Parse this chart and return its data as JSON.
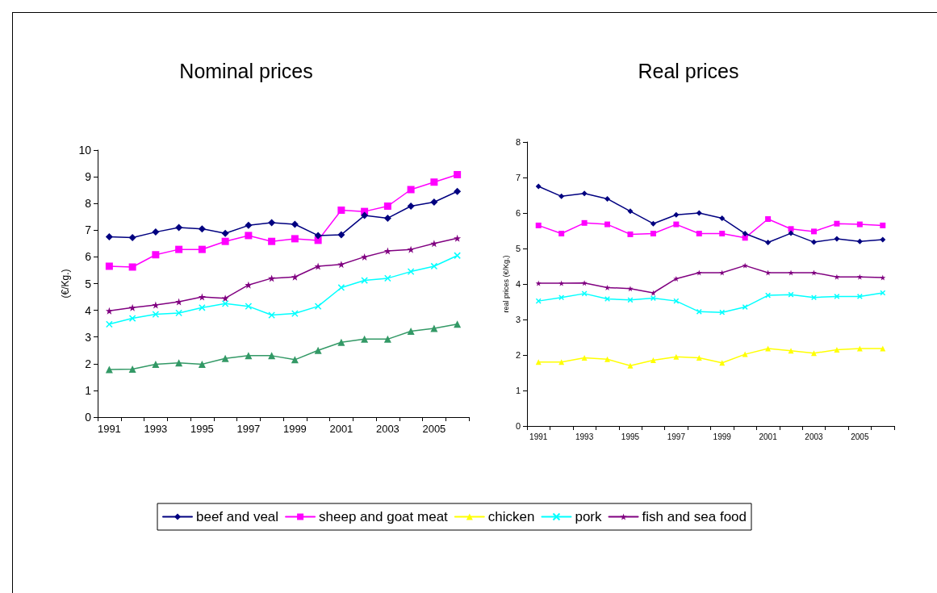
{
  "chart_data": [
    {
      "type": "line",
      "title": "Nominal prices",
      "ylabel": "(€/Kg.)",
      "categories": [
        "1991",
        null,
        "1993",
        null,
        "1995",
        null,
        "1997",
        null,
        "1999",
        null,
        "2001",
        null,
        "2003",
        null,
        "2005",
        null
      ],
      "ylim": [
        0,
        10
      ],
      "yticks": [
        0,
        1,
        2,
        3,
        4,
        5,
        6,
        7,
        8,
        9,
        10
      ],
      "grid": false,
      "series": [
        {
          "color": "#000080",
          "marker": "diamond",
          "values": [
            6.75,
            6.72,
            6.93,
            7.1,
            7.05,
            6.88,
            7.18,
            7.28,
            7.22,
            6.8,
            6.83,
            7.55,
            7.45,
            7.9,
            8.05,
            8.45
          ]
        },
        {
          "color": "#ff00ff",
          "marker": "square",
          "values": [
            5.65,
            5.62,
            6.08,
            6.28,
            6.28,
            6.58,
            6.8,
            6.58,
            6.68,
            6.62,
            7.75,
            7.7,
            7.9,
            8.52,
            8.8,
            9.08
          ]
        },
        {
          "color": "#339966",
          "marker": "triangle",
          "values": [
            1.78,
            1.8,
            1.98,
            2.03,
            1.98,
            2.2,
            2.3,
            2.3,
            2.15,
            2.5,
            2.8,
            2.92,
            2.92,
            3.22,
            3.32,
            3.48
          ]
        },
        {
          "color": "#00ffff",
          "marker": "cross",
          "values": [
            3.48,
            3.7,
            3.85,
            3.9,
            4.1,
            4.25,
            4.15,
            3.82,
            3.88,
            4.15,
            4.85,
            5.12,
            5.2,
            5.45,
            5.65,
            6.05
          ]
        },
        {
          "color": "#800080",
          "marker": "star",
          "values": [
            3.98,
            4.1,
            4.2,
            4.32,
            4.5,
            4.45,
            4.95,
            5.2,
            5.25,
            5.65,
            5.72,
            6.0,
            6.22,
            6.28,
            6.5,
            6.7
          ]
        }
      ]
    },
    {
      "type": "line",
      "title": "Real prices",
      "ylabel": "real prices (€/Kg.)",
      "categories": [
        "1991",
        null,
        "1993",
        null,
        "1995",
        null,
        "1997",
        null,
        "1999",
        null,
        "2001",
        null,
        "2003",
        null,
        "2005",
        null
      ],
      "ylim": [
        0,
        8
      ],
      "yticks": [
        0,
        1,
        2,
        3,
        4,
        5,
        6,
        7,
        8
      ],
      "grid": false,
      "legend": "bottom",
      "series": [
        {
          "name": "beef and veal",
          "color": "#000080",
          "marker": "diamond",
          "values": [
            6.75,
            6.47,
            6.55,
            6.4,
            6.05,
            5.7,
            5.95,
            6.0,
            5.85,
            5.42,
            5.17,
            5.43,
            5.18,
            5.27,
            5.2,
            5.25
          ]
        },
        {
          "name": "sheep and goat meat",
          "color": "#ff00ff",
          "marker": "square",
          "values": [
            5.65,
            5.42,
            5.72,
            5.68,
            5.4,
            5.42,
            5.68,
            5.42,
            5.42,
            5.3,
            5.83,
            5.55,
            5.48,
            5.7,
            5.68,
            5.65
          ]
        },
        {
          "name": "chicken",
          "color": "#ffff00",
          "marker": "triangle",
          "values": [
            1.8,
            1.8,
            1.92,
            1.88,
            1.7,
            1.85,
            1.95,
            1.92,
            1.78,
            2.02,
            2.18,
            2.12,
            2.05,
            2.15,
            2.18,
            2.18
          ]
        },
        {
          "name": "pork",
          "color": "#00ffff",
          "marker": "cross",
          "values": [
            3.52,
            3.62,
            3.73,
            3.58,
            3.55,
            3.6,
            3.52,
            3.22,
            3.2,
            3.35,
            3.68,
            3.7,
            3.62,
            3.65,
            3.65,
            3.75
          ]
        },
        {
          "name": "fish and sea food",
          "color": "#800080",
          "marker": "star",
          "values": [
            4.02,
            4.02,
            4.03,
            3.9,
            3.87,
            3.75,
            4.15,
            4.32,
            4.32,
            4.52,
            4.32,
            4.32,
            4.32,
            4.2,
            4.2,
            4.18
          ]
        }
      ]
    }
  ]
}
